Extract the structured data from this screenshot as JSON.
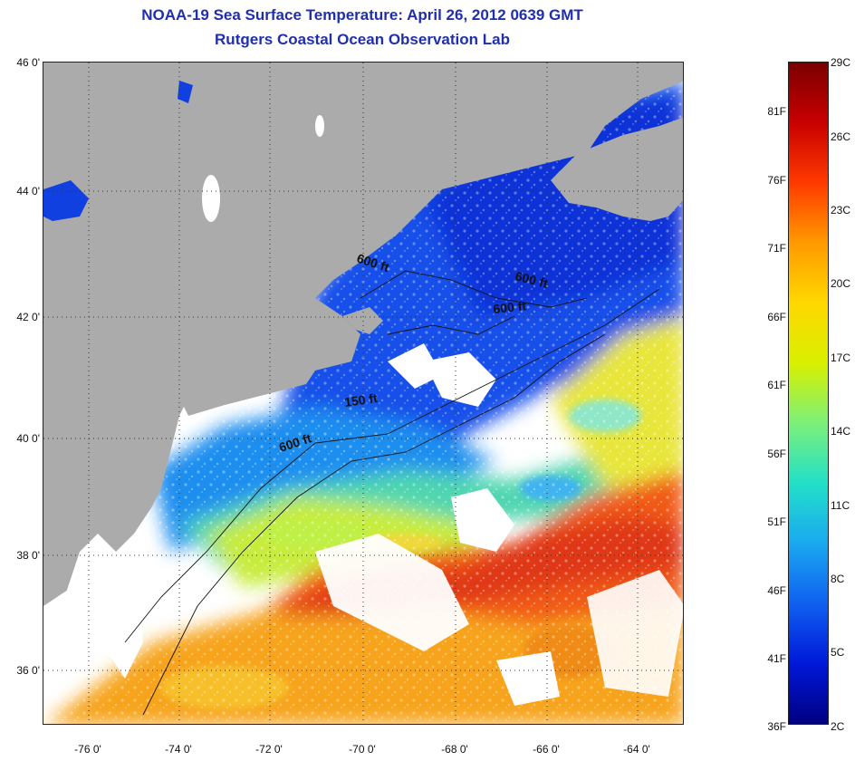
{
  "header": {
    "title_line1": "NOAA-19 Sea Surface Temperature:  April 26, 2012 0639 GMT",
    "title_line2": "Rutgers Coastal Ocean Observation Lab"
  },
  "map": {
    "latitude_labels": [
      "46 0'",
      "44 0'",
      "42 0'",
      "40 0'",
      "38 0'",
      "36 0'"
    ],
    "longitude_labels": [
      "-76 0'",
      "-74 0'",
      "-72 0'",
      "-70 0'",
      "-68 0'",
      "-66 0'",
      "-64 0'"
    ],
    "contour_labels": [
      "600 ft",
      "600 ft",
      "600 ft",
      "150 ft",
      "600 ft"
    ],
    "colors": {
      "land": "#ababab",
      "cloud": "#ffffff",
      "cold_water": "#0b3fe0",
      "warm_water": "#f03c10"
    }
  },
  "colorbar": {
    "celsius_labels": [
      "29C",
      "26C",
      "23C",
      "20C",
      "17C",
      "14C",
      "11C",
      "8C",
      "5C",
      "2C"
    ],
    "fahrenheit_labels": [
      "81F",
      "76F",
      "71F",
      "66F",
      "61F",
      "56F",
      "51F",
      "46F",
      "41F",
      "36F"
    ],
    "gradient_colors": [
      "#7a0000",
      "#c80000",
      "#ff3a00",
      "#ff9a00",
      "#ffd800",
      "#d8f000",
      "#7cf07a",
      "#22e0c8",
      "#1aa8f0",
      "#1060f0",
      "#0018d8",
      "#000080"
    ]
  }
}
